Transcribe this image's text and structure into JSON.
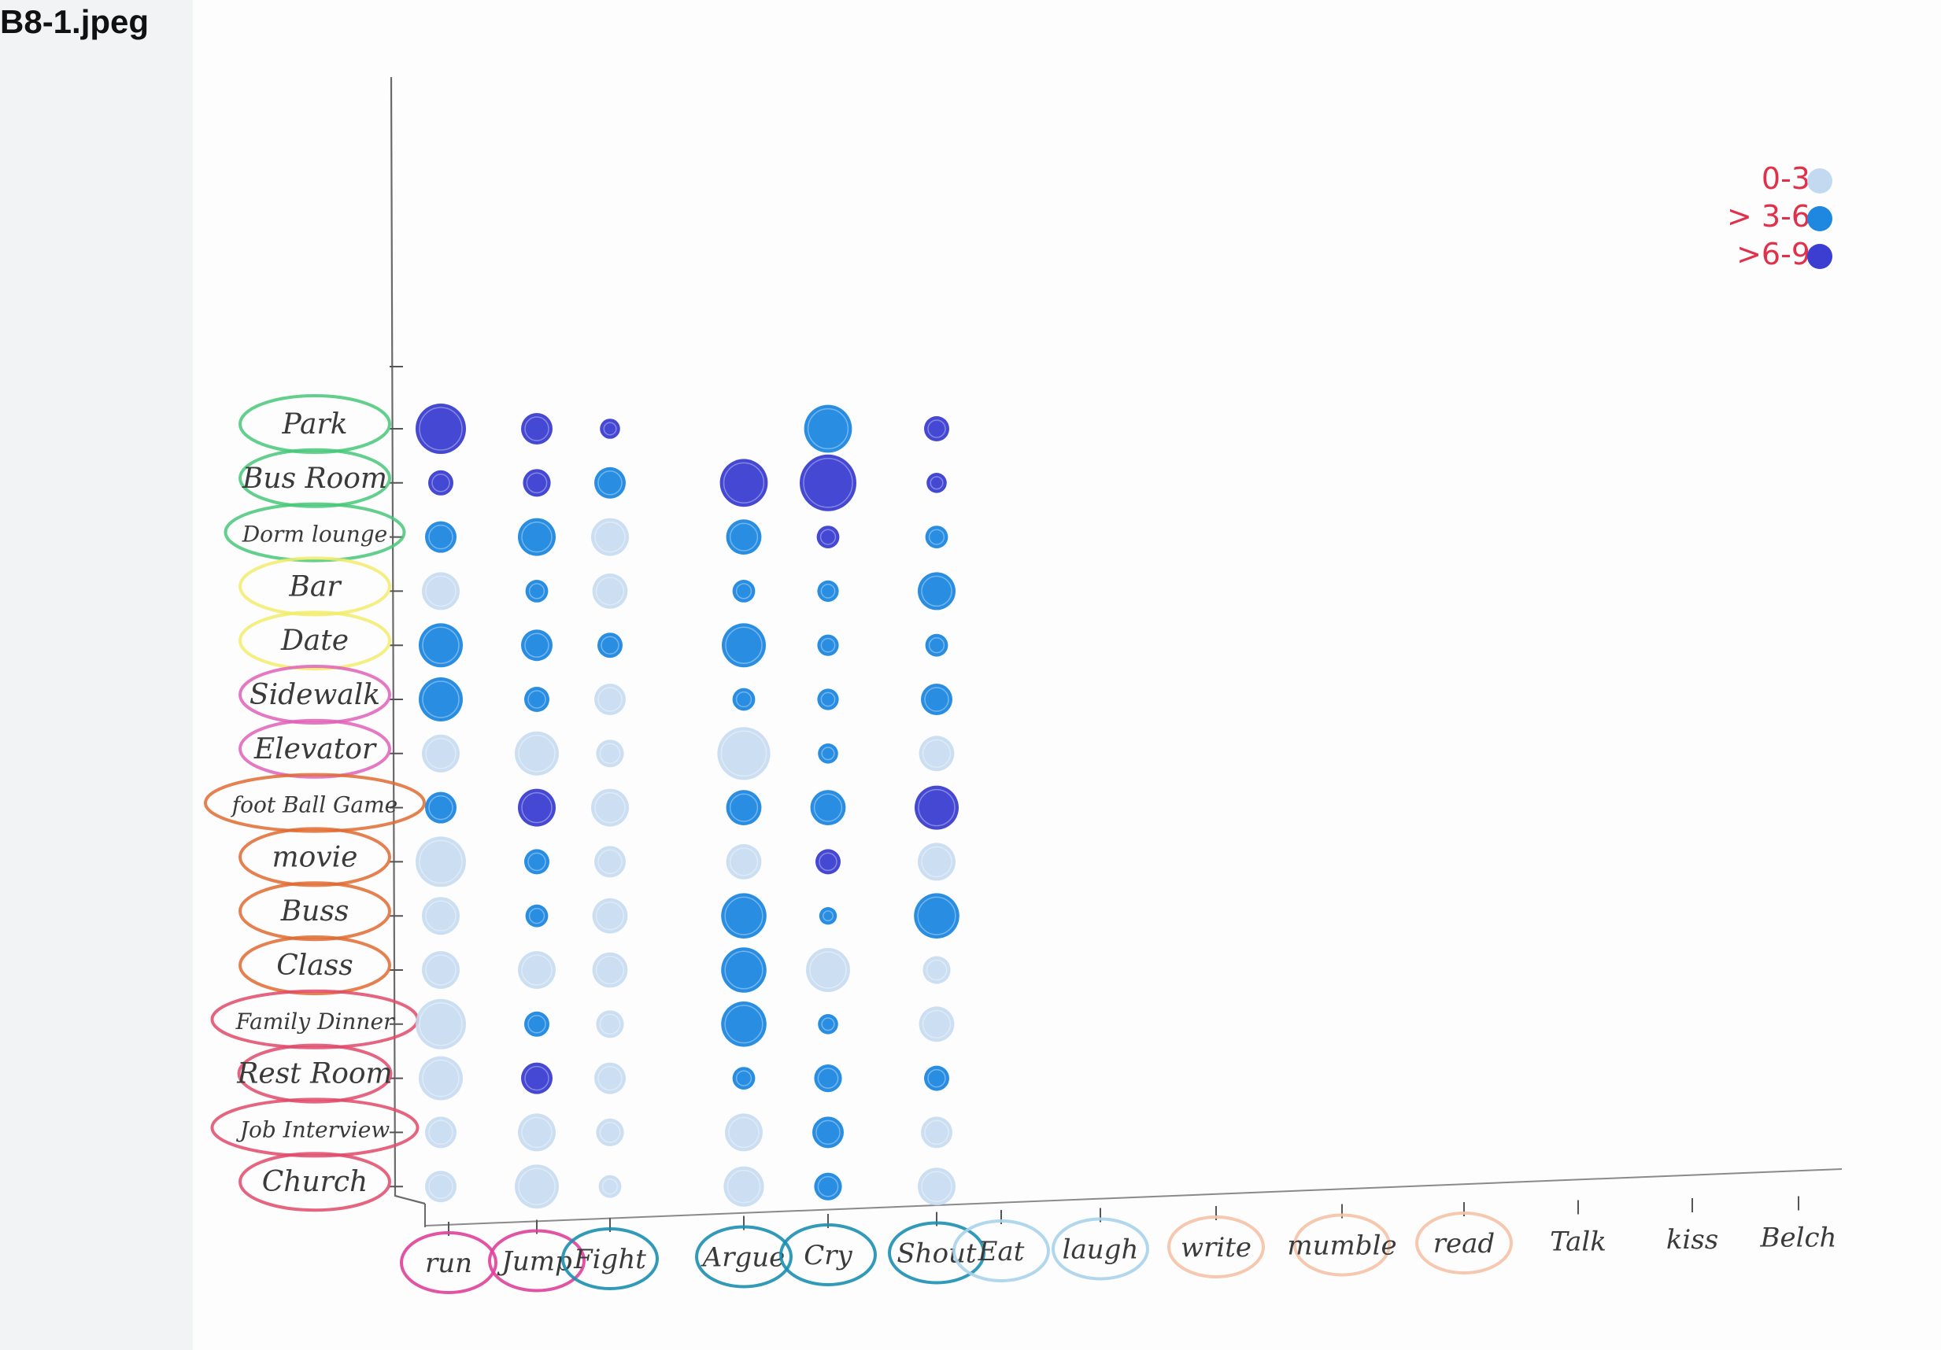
{
  "file_label": "B8-1.jpeg",
  "chart_data": {
    "type": "scatter",
    "title": "",
    "xlabel": "",
    "ylabel": "",
    "x_categories": [
      "run",
      "Jump",
      "Fight",
      "Argue",
      "Cry",
      "Shout",
      "Eat",
      "laugh",
      "write",
      "mumble",
      "read",
      "Talk",
      "kiss",
      "Belch"
    ],
    "x_category_colors": [
      "#e0409a",
      "#e0409a",
      "#1a8fb0",
      "#1a8fb0",
      "#1a8fb0",
      "#1a8fb0",
      "#a9d3ea",
      "#a9d3ea",
      "#f4c2a6",
      "#f4c2a6",
      "#f4c2a6",
      "",
      "",
      ""
    ],
    "y_categories": [
      "Park",
      "Bus Room",
      "Dorm lounge",
      "Bar",
      "Date",
      "Sidewalk",
      "Elevator",
      "Football Game",
      "movie",
      "Buss",
      "Class",
      "Family Dinner",
      "Rest Room",
      "Job Interview",
      "Church"
    ],
    "y_category_colors": [
      "#46c878",
      "#46c878",
      "#46c878",
      "#f2ec6a",
      "#f2ec6a",
      "#e060b8",
      "#e060b8",
      "#e06a30",
      "#e06a30",
      "#e06a30",
      "#e06a30",
      "#e04a6a",
      "#e04a6a",
      "#e04a6a",
      "#e04a6a"
    ],
    "y_label_text": [
      "Park",
      "Bus Room",
      "Dorm lounge",
      "Bar",
      "Date",
      "Sidewalk",
      "Elevator",
      "foot Ball Game",
      "movie",
      "Buss",
      "Class",
      "Family Dinner",
      "Rest Room",
      "Job Interview",
      "Church"
    ],
    "legend": {
      "placement": "top-right",
      "entries": [
        {
          "label": "0-3",
          "color": "#c3d9f0"
        },
        {
          "label": "> 3-6",
          "color": "#1e88e0"
        },
        {
          "label": ">6-9",
          "color": "#3b3ed0"
        }
      ]
    },
    "bins": {
      "0-3": "#c3d9f0",
      "3-6": "#1e88e0",
      "6-9": "#3b3ed0"
    },
    "columns": {
      "run": [
        {
          "bin": "6-9",
          "size": 3
        },
        {
          "bin": "6-9",
          "size": 1
        },
        {
          "bin": "3-6",
          "size": 1.5
        },
        {
          "bin": "0-3",
          "size": 2
        },
        {
          "bin": "3-6",
          "size": 2.5
        },
        {
          "bin": "3-6",
          "size": 2.5
        },
        {
          "bin": "0-3",
          "size": 2
        },
        {
          "bin": "3-6",
          "size": 1.5
        },
        {
          "bin": "0-3",
          "size": 3
        },
        {
          "bin": "0-3",
          "size": 2
        },
        {
          "bin": "0-3",
          "size": 2
        },
        {
          "bin": "0-3",
          "size": 3
        },
        {
          "bin": "0-3",
          "size": 2.5
        },
        {
          "bin": "0-3",
          "size": 1.5
        },
        {
          "bin": "0-3",
          "size": 1.5
        }
      ],
      "Jump": [
        {
          "bin": "6-9",
          "size": 1.5
        },
        {
          "bin": "6-9",
          "size": 1.2
        },
        {
          "bin": "3-6",
          "size": 2
        },
        {
          "bin": "3-6",
          "size": 0.8
        },
        {
          "bin": "3-6",
          "size": 1.5
        },
        {
          "bin": "3-6",
          "size": 1
        },
        {
          "bin": "0-3",
          "size": 2.5
        },
        {
          "bin": "6-9",
          "size": 2
        },
        {
          "bin": "3-6",
          "size": 1
        },
        {
          "bin": "3-6",
          "size": 0.8
        },
        {
          "bin": "0-3",
          "size": 2
        },
        {
          "bin": "3-6",
          "size": 1
        },
        {
          "bin": "6-9",
          "size": 1.5
        },
        {
          "bin": "0-3",
          "size": 2
        },
        {
          "bin": "0-3",
          "size": 2.5
        }
      ],
      "Fight": [
        {
          "bin": "6-9",
          "size": 0.6
        },
        {
          "bin": "3-6",
          "size": 1.5
        },
        {
          "bin": "0-3",
          "size": 2
        },
        {
          "bin": "0-3",
          "size": 1.8
        },
        {
          "bin": "3-6",
          "size": 1
        },
        {
          "bin": "0-3",
          "size": 1.5
        },
        {
          "bin": "0-3",
          "size": 1.2
        },
        {
          "bin": "0-3",
          "size": 2
        },
        {
          "bin": "0-3",
          "size": 1.5
        },
        {
          "bin": "0-3",
          "size": 1.8
        },
        {
          "bin": "0-3",
          "size": 1.8
        },
        {
          "bin": "0-3",
          "size": 1.2
        },
        {
          "bin": "0-3",
          "size": 1.5
        },
        {
          "bin": "0-3",
          "size": 1.2
        },
        {
          "bin": "0-3",
          "size": 0.8
        }
      ],
      "Argue": [
        {
          "bin": "",
          "size": 0
        },
        {
          "bin": "6-9",
          "size": 2.8
        },
        {
          "bin": "3-6",
          "size": 1.8
        },
        {
          "bin": "3-6",
          "size": 0.8
        },
        {
          "bin": "3-6",
          "size": 2.5
        },
        {
          "bin": "3-6",
          "size": 0.8
        },
        {
          "bin": "0-3",
          "size": 3.2
        },
        {
          "bin": "3-6",
          "size": 1.8
        },
        {
          "bin": "0-3",
          "size": 1.8
        },
        {
          "bin": "3-6",
          "size": 2.6
        },
        {
          "bin": "3-6",
          "size": 2.6
        },
        {
          "bin": "3-6",
          "size": 2.6
        },
        {
          "bin": "3-6",
          "size": 0.8
        },
        {
          "bin": "0-3",
          "size": 2
        },
        {
          "bin": "0-3",
          "size": 2.2
        }
      ],
      "Cry": [
        {
          "bin": "3-6",
          "size": 2.8
        },
        {
          "bin": "6-9",
          "size": 3.5
        },
        {
          "bin": "6-9",
          "size": 0.8
        },
        {
          "bin": "3-6",
          "size": 0.7
        },
        {
          "bin": "3-6",
          "size": 0.7
        },
        {
          "bin": "3-6",
          "size": 0.7
        },
        {
          "bin": "3-6",
          "size": 0.6
        },
        {
          "bin": "3-6",
          "size": 1.8
        },
        {
          "bin": "6-9",
          "size": 1
        },
        {
          "bin": "3-6",
          "size": 0.4
        },
        {
          "bin": "0-3",
          "size": 2.5
        },
        {
          "bin": "3-6",
          "size": 0.6
        },
        {
          "bin": "3-6",
          "size": 1.2
        },
        {
          "bin": "3-6",
          "size": 1.5
        },
        {
          "bin": "3-6",
          "size": 1.2
        }
      ],
      "Shout": [
        {
          "bin": "6-9",
          "size": 1
        },
        {
          "bin": "6-9",
          "size": 0.6
        },
        {
          "bin": "3-6",
          "size": 0.8
        },
        {
          "bin": "3-6",
          "size": 2
        },
        {
          "bin": "3-6",
          "size": 0.8
        },
        {
          "bin": "3-6",
          "size": 1.5
        },
        {
          "bin": "0-3",
          "size": 1.8
        },
        {
          "bin": "6-9",
          "size": 2.5
        },
        {
          "bin": "0-3",
          "size": 2
        },
        {
          "bin": "3-6",
          "size": 2.6
        },
        {
          "bin": "0-3",
          "size": 1.2
        },
        {
          "bin": "0-3",
          "size": 1.8
        },
        {
          "bin": "3-6",
          "size": 1
        },
        {
          "bin": "0-3",
          "size": 1.5
        },
        {
          "bin": "0-3",
          "size": 2
        }
      ],
      "Eat": [],
      "laugh": [],
      "write": [],
      "mumble": [],
      "read": [],
      "Talk": [],
      "kiss": [],
      "Belch": []
    }
  }
}
